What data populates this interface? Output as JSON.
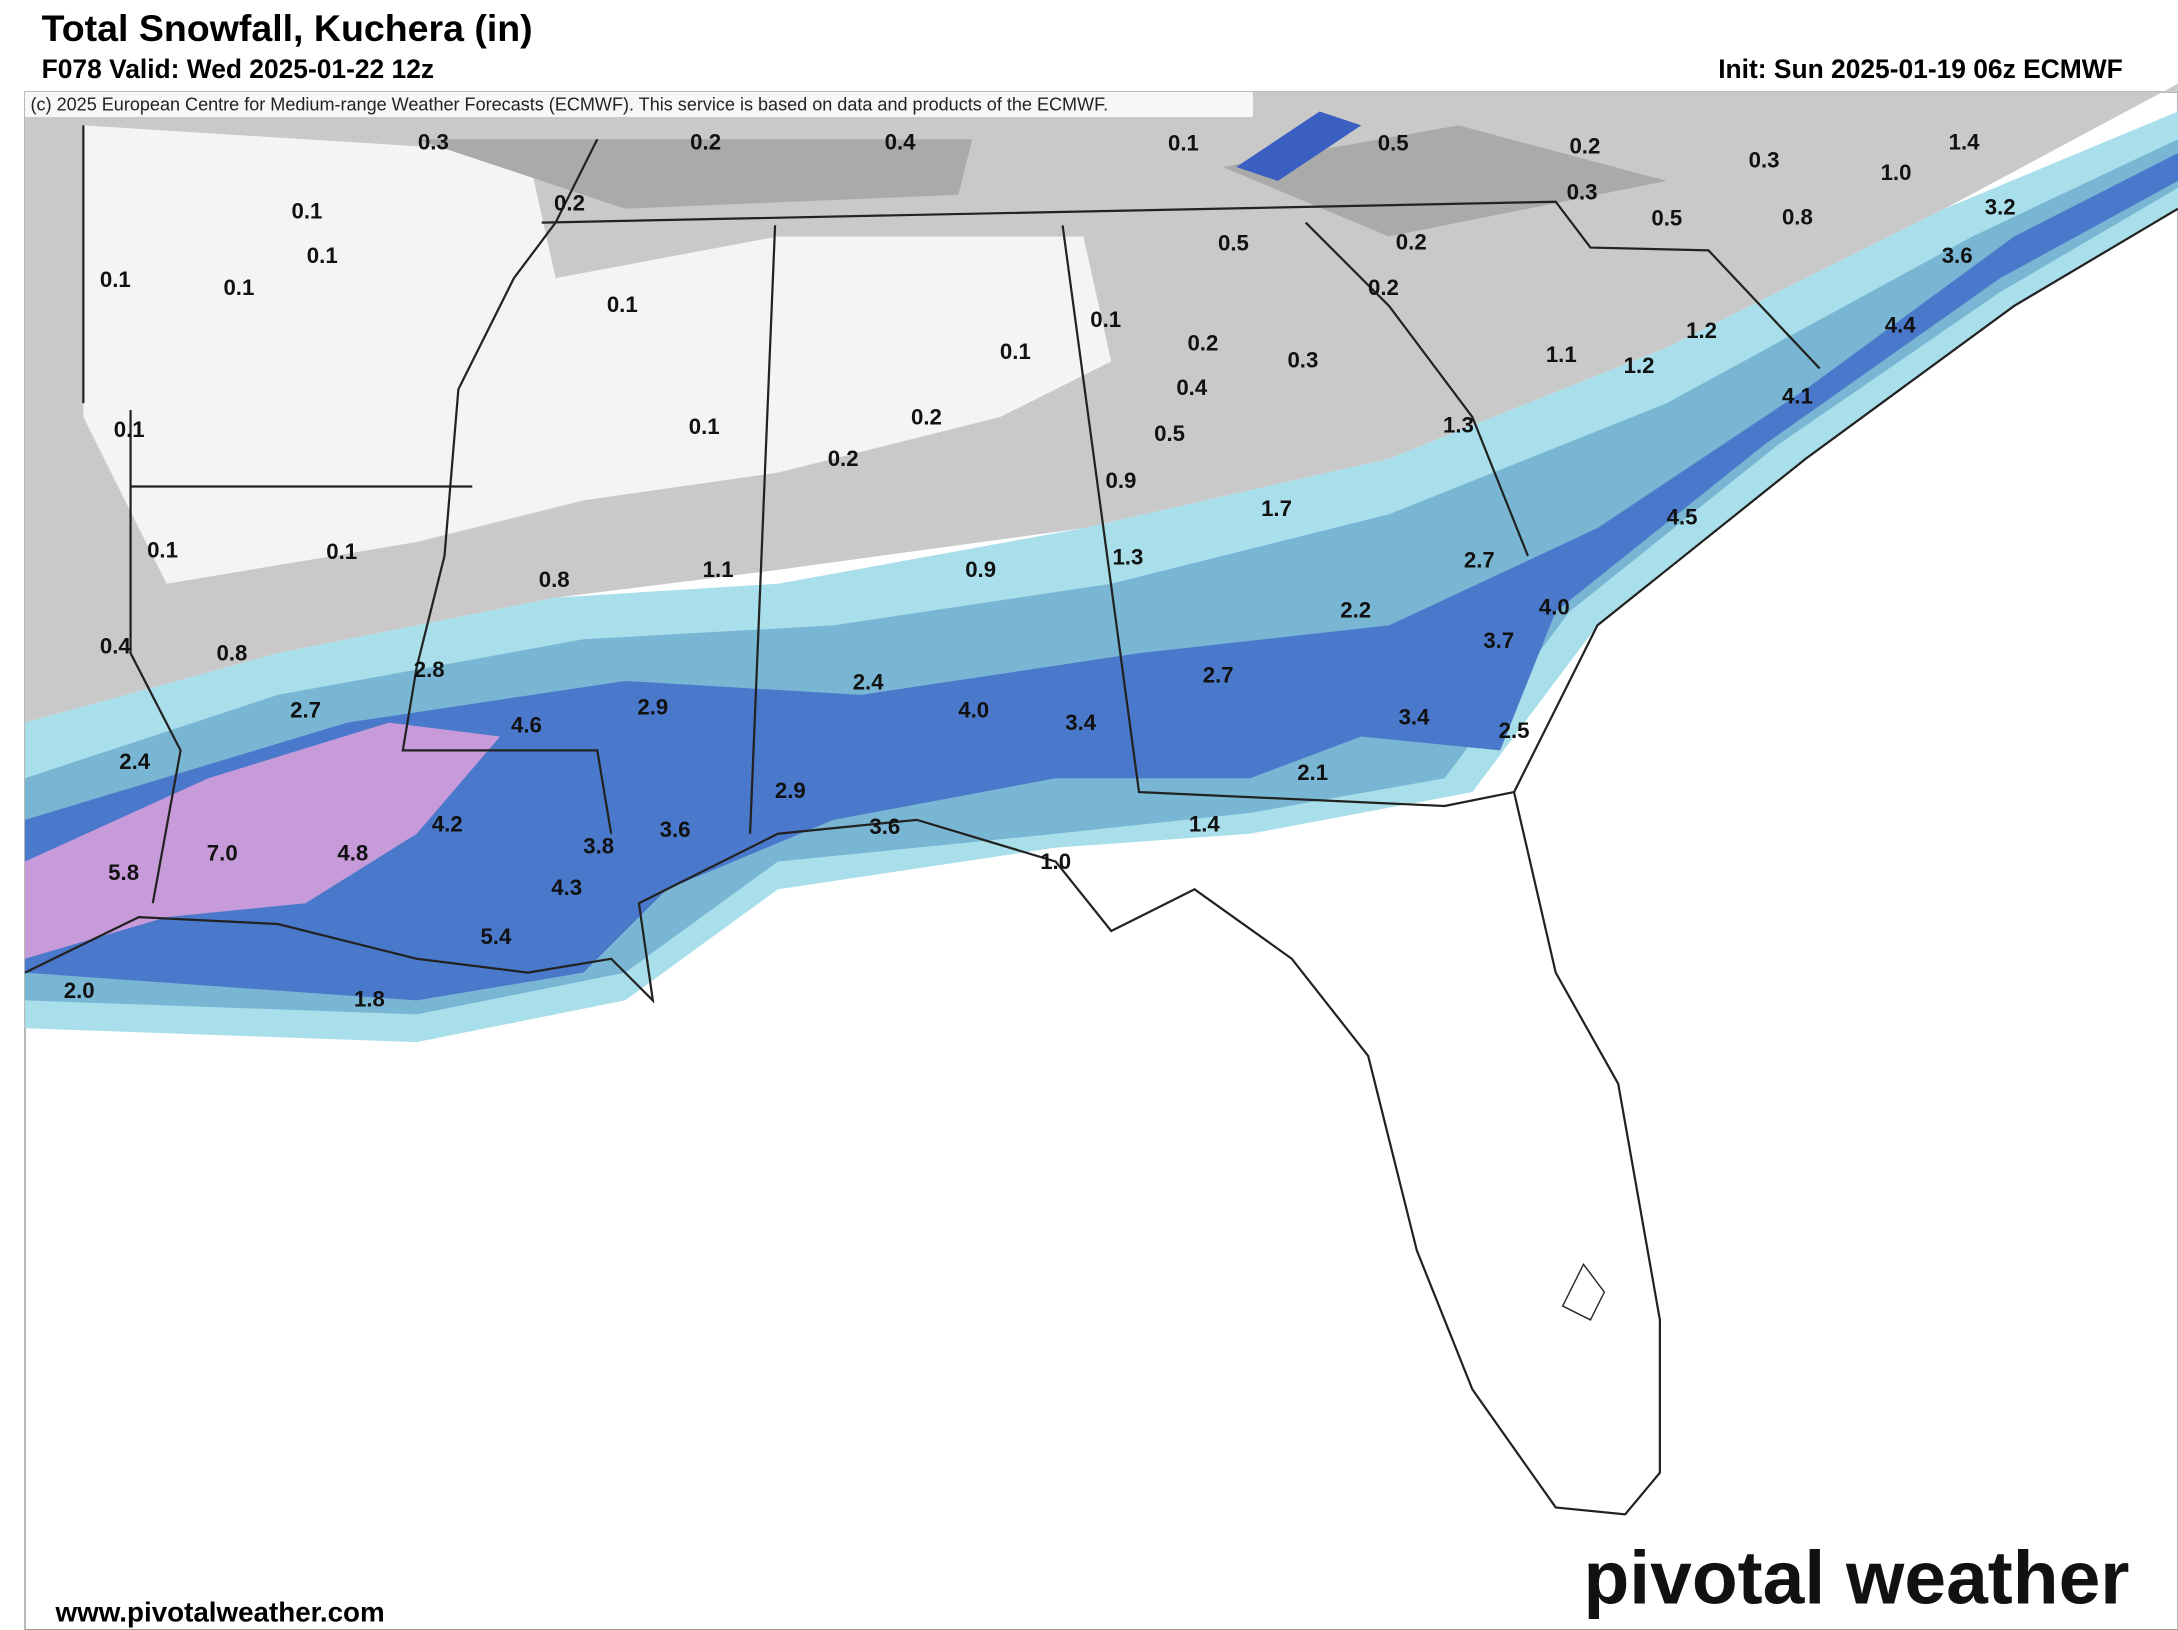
{
  "header": {
    "title": "Total Snowfall, Kuchera (in)",
    "valid": "F078 Valid: Wed 2025-01-22 12z",
    "init": "Init: Sun 2025-01-19 06z ECMWF"
  },
  "map": {
    "credit": "(c) 2025 European Centre for Medium-range Weather Forecasts (ECMWF). This service is based on data and products of the ECMWF.",
    "labels": [
      "0.3",
      "0.2",
      "0.4",
      "0.1",
      "0.5",
      "0.2",
      "0.3",
      "1.4",
      "1.0",
      "0.3",
      "0.5",
      "0.8",
      "3.2",
      "0.1",
      "0.2",
      "0.1",
      "0.1",
      "0.1",
      "0.5",
      "0.2",
      "0.2",
      "3.6",
      "0.1",
      "0.1",
      "0.1",
      "0.2",
      "0.3",
      "1.2",
      "1.1",
      "1.2",
      "4.4",
      "4.1",
      "0.4",
      "0.1",
      "0.1",
      "0.2",
      "0.2",
      "0.5",
      "1.3",
      "0.9",
      "1.7",
      "4.5",
      "0.1",
      "0.1",
      "0.8",
      "1.1",
      "0.9",
      "1.3",
      "2.7",
      "2.2",
      "4.0",
      "0.4",
      "0.8",
      "2.8",
      "3.7",
      "2.7",
      "4.6",
      "2.9",
      "2.4",
      "4.0",
      "3.4",
      "2.7",
      "3.4",
      "2.5",
      "2.4",
      "2.1",
      "2.9",
      "4.2",
      "3.8",
      "3.6",
      "3.6",
      "1.4",
      "7.0",
      "4.8",
      "5.8",
      "4.3",
      "1.0",
      "5.4",
      "2.0",
      "1.8"
    ]
  },
  "footer": {
    "url": "www.pivotalweather.com",
    "logo": "pivotal weather"
  }
}
